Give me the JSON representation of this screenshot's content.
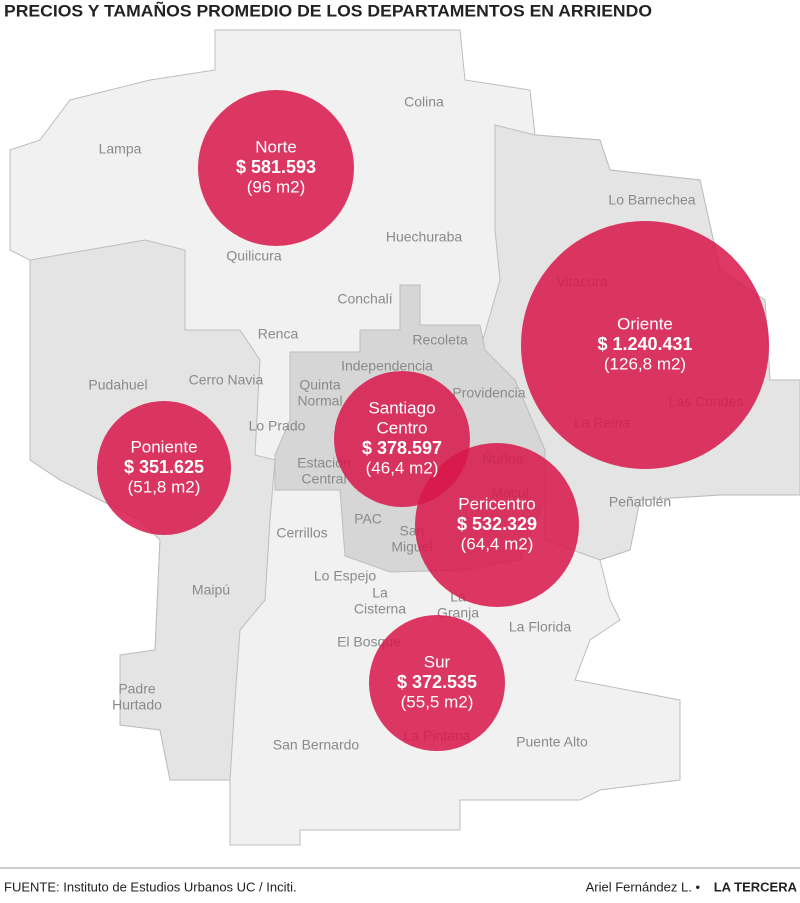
{
  "header": {
    "title": "PRECIOS Y TAMAÑOS PROMEDIO DE LOS DEPARTAMENTOS EN ARRIENDO"
  },
  "communes": [
    {
      "lines": [
        "Colina"
      ]
    },
    {
      "lines": [
        "Lampa"
      ]
    },
    {
      "lines": [
        "Lo Barnechea"
      ]
    },
    {
      "lines": [
        "Huechuraba"
      ]
    },
    {
      "lines": [
        "Quilicura"
      ]
    },
    {
      "lines": [
        "Conchalí"
      ]
    },
    {
      "lines": [
        "Recoleta"
      ]
    },
    {
      "lines": [
        "Renca"
      ]
    },
    {
      "lines": [
        "Vitacura"
      ]
    },
    {
      "lines": [
        "Independencia"
      ]
    },
    {
      "lines": [
        "Pudahuel"
      ]
    },
    {
      "lines": [
        "Cerro Navia"
      ]
    },
    {
      "lines": [
        "Quinta",
        "Normal"
      ]
    },
    {
      "lines": [
        "Providencia"
      ]
    },
    {
      "lines": [
        "Lo Prado"
      ]
    },
    {
      "lines": [
        "Las Condes"
      ]
    },
    {
      "lines": [
        "La Reina"
      ]
    },
    {
      "lines": [
        "Estación",
        "Central"
      ]
    },
    {
      "lines": [
        "Ñuñoa"
      ]
    },
    {
      "lines": [
        "Macul"
      ]
    },
    {
      "lines": [
        "Peñalolén"
      ]
    },
    {
      "lines": [
        "Cerrillos"
      ]
    },
    {
      "lines": [
        "PAC"
      ]
    },
    {
      "lines": [
        "San",
        "Miguel"
      ]
    },
    {
      "lines": [
        "Maipú"
      ]
    },
    {
      "lines": [
        "Lo Espejo"
      ]
    },
    {
      "lines": [
        "La",
        "Cisterna"
      ]
    },
    {
      "lines": [
        "La",
        "Granja"
      ]
    },
    {
      "lines": [
        "La Florida"
      ]
    },
    {
      "lines": [
        "El Bosque"
      ]
    },
    {
      "lines": [
        "Padre",
        "Hurtado"
      ]
    },
    {
      "lines": [
        "La Pintana"
      ]
    },
    {
      "lines": [
        "San Bernardo"
      ]
    },
    {
      "lines": [
        "Puente Alto"
      ]
    }
  ],
  "zones": [
    {
      "lines": [
        "Norte"
      ],
      "price": "$ 581.593",
      "size": "(96 m2)"
    },
    {
      "lines": [
        "Oriente"
      ],
      "price": "$ 1.240.431",
      "size": "(126,8 m2)"
    },
    {
      "lines": [
        "Poniente"
      ],
      "price": "$ 351.625",
      "size": "(51,8 m2)"
    },
    {
      "lines": [
        "Santiago",
        "Centro"
      ],
      "price": "$ 378.597",
      "size": "(46,4 m2)"
    },
    {
      "lines": [
        "Pericentro"
      ],
      "price": "$ 532.329",
      "size": "(64,4 m2)"
    },
    {
      "lines": [
        "Sur"
      ],
      "price": "$ 372.535",
      "size": "(55,5 m2)"
    }
  ],
  "footer": {
    "source": "FUENTE: Instituto de Estudios Urbanos UC / Inciti.",
    "author": "Ariel Fernández L. •",
    "publication": "LA TERCERA"
  }
}
